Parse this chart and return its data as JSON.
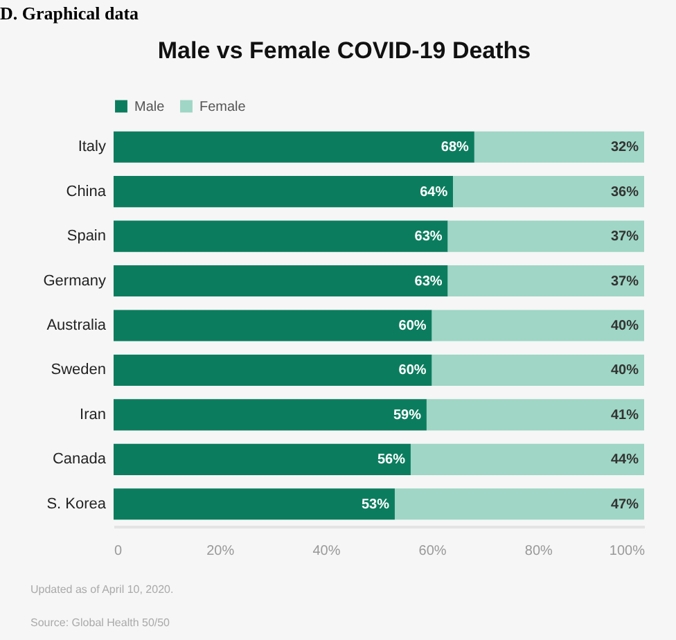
{
  "chart_data": {
    "type": "bar",
    "orientation": "horizontal",
    "stacked": true,
    "title": "Male vs Female COVID-19 Deaths",
    "categories": [
      "Italy",
      "China",
      "Spain",
      "Germany",
      "Australia",
      "Sweden",
      "Iran",
      "Canada",
      "S. Korea"
    ],
    "series": [
      {
        "name": "Male",
        "color": "#0b7d5e",
        "values": [
          68,
          64,
          63,
          63,
          60,
          60,
          59,
          56,
          53
        ],
        "value_labels": [
          "68%",
          "64%",
          "63%",
          "63%",
          "60%",
          "60%",
          "59%",
          "56%",
          "53%"
        ]
      },
      {
        "name": "Female",
        "color": "#9fd6c5",
        "values": [
          32,
          36,
          37,
          37,
          40,
          40,
          41,
          44,
          47
        ],
        "value_labels": [
          "32%",
          "36%",
          "37%",
          "37%",
          "40%",
          "40%",
          "41%",
          "44%",
          "47%"
        ]
      }
    ],
    "xlim": [
      0,
      100
    ],
    "xticks": [
      0,
      {
        "value": 20,
        "label": "20%"
      },
      {
        "value": 40,
        "label": "40%"
      },
      {
        "value": 60,
        "label": "60%"
      },
      {
        "value": 80,
        "label": "80%"
      },
      {
        "value": 100,
        "label": "100%"
      }
    ],
    "grid": false,
    "legend": "top",
    "annotations": [
      "D. Graphical data",
      "Updated as of April 10, 2020.",
      "Source: Global Health 50/50"
    ]
  }
}
